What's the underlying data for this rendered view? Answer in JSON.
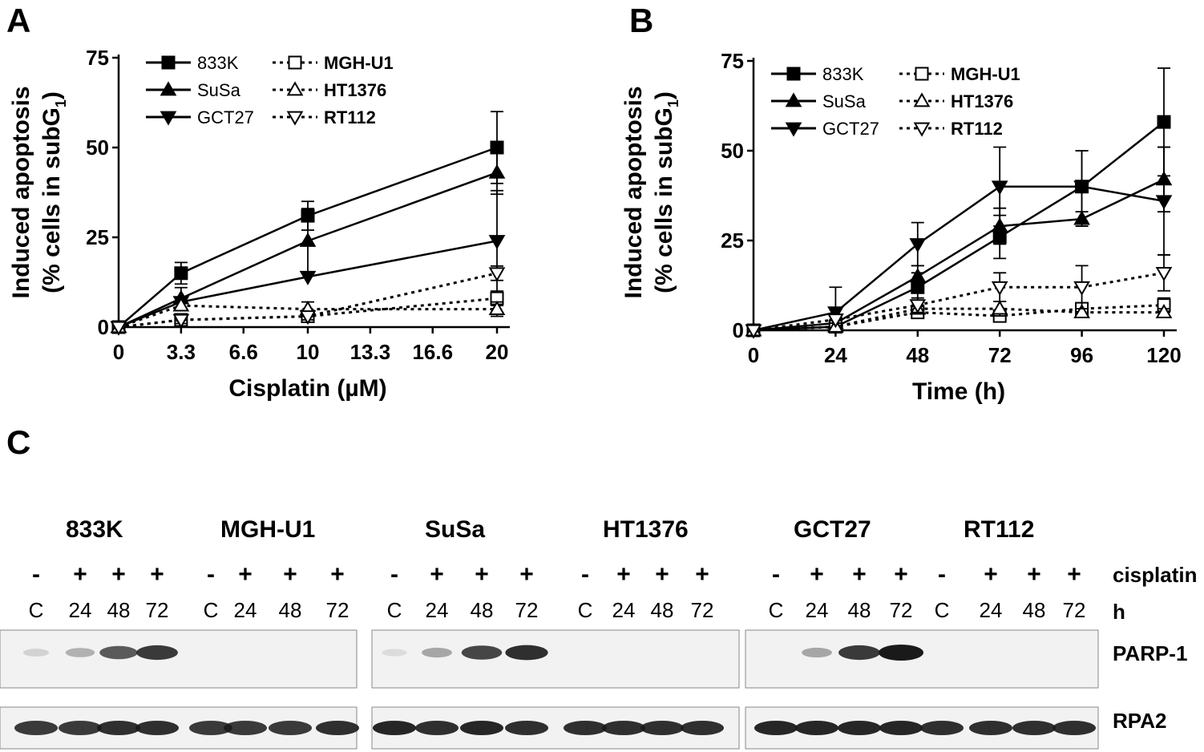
{
  "colors": {
    "ink": "#000000",
    "blot_bg": "#f2f2f2",
    "band": "#1a1a1a"
  },
  "panels": {
    "a": "A",
    "b": "B",
    "c": "C"
  },
  "chart_data": [
    {
      "type": "line",
      "panel": "A",
      "title": "",
      "xlabel": "Cisplatin (µM)",
      "ylabel_line1": "Induced apoptosis",
      "ylabel_line2": "(% cells in subG",
      "ylabel_sub": "1",
      "ylabel_close": ")",
      "xlim": [
        0,
        20
      ],
      "ylim": [
        0,
        75
      ],
      "xticks": [
        0,
        3.3,
        6.6,
        10,
        13.3,
        16.6,
        20
      ],
      "xtick_labels": [
        "0",
        "3.3",
        "6.6",
        "10",
        "13.3",
        "16.6",
        "20"
      ],
      "yticks": [
        0,
        25,
        50,
        75
      ],
      "ytick_labels": [
        "0",
        "25",
        "50",
        "75"
      ],
      "legend_position": "top-left",
      "series": [
        {
          "name": "833K",
          "marker": "square",
          "filled": true,
          "dashed": false,
          "x": [
            0,
            3.3,
            10,
            20
          ],
          "y": [
            0,
            15,
            31,
            50
          ],
          "err": [
            0,
            3,
            4,
            10
          ]
        },
        {
          "name": "SuSa",
          "marker": "triangle-up",
          "filled": true,
          "dashed": false,
          "x": [
            0,
            3.3,
            10,
            20
          ],
          "y": [
            0,
            8,
            24,
            43
          ],
          "err": [
            0,
            3,
            9,
            6
          ]
        },
        {
          "name": "GCT27",
          "marker": "triangle-down",
          "filled": true,
          "dashed": false,
          "x": [
            0,
            3.3,
            10,
            20
          ],
          "y": [
            0,
            7,
            14,
            24
          ],
          "err": [
            0,
            0,
            0,
            14
          ]
        },
        {
          "name": "MGH-U1",
          "marker": "square",
          "filled": false,
          "dashed": true,
          "x": [
            0,
            3.3,
            10,
            20
          ],
          "y": [
            0,
            2,
            3,
            8
          ],
          "err": [
            0,
            1,
            1,
            2
          ]
        },
        {
          "name": "HT1376",
          "marker": "triangle-up",
          "filled": false,
          "dashed": true,
          "x": [
            0,
            3.3,
            10,
            20
          ],
          "y": [
            0,
            6,
            5,
            5
          ],
          "err": [
            0,
            1,
            2,
            2
          ]
        },
        {
          "name": "RT112",
          "marker": "triangle-down",
          "filled": false,
          "dashed": true,
          "x": [
            0,
            3.3,
            10,
            20
          ],
          "y": [
            0,
            2,
            3,
            15
          ],
          "err": [
            0,
            1,
            1,
            2
          ]
        }
      ]
    },
    {
      "type": "line",
      "panel": "B",
      "title": "",
      "xlabel": "Time (h)",
      "ylabel_line1": "Induced apoptosis",
      "ylabel_line2": "(% cells in subG",
      "ylabel_sub": "1",
      "ylabel_close": ")",
      "xlim": [
        0,
        120
      ],
      "ylim": [
        0,
        75
      ],
      "xticks": [
        0,
        24,
        48,
        72,
        96,
        120
      ],
      "xtick_labels": [
        "0",
        "24",
        "48",
        "72",
        "96",
        "120"
      ],
      "yticks": [
        0,
        25,
        50,
        75
      ],
      "ytick_labels": [
        "0",
        "25",
        "50",
        "75"
      ],
      "legend_position": "top-left",
      "series": [
        {
          "name": "833K",
          "marker": "square",
          "filled": true,
          "dashed": false,
          "x": [
            0,
            24,
            48,
            72,
            96,
            120
          ],
          "y": [
            0,
            1,
            12,
            26,
            40,
            58
          ],
          "err": [
            0,
            1,
            4,
            6,
            10,
            15
          ]
        },
        {
          "name": "SuSa",
          "marker": "triangle-up",
          "filled": true,
          "dashed": false,
          "x": [
            0,
            24,
            48,
            72,
            96,
            120
          ],
          "y": [
            0,
            2,
            15,
            29,
            31,
            42
          ],
          "err": [
            0,
            1,
            3,
            5,
            2,
            9
          ]
        },
        {
          "name": "GCT27",
          "marker": "triangle-down",
          "filled": true,
          "dashed": false,
          "x": [
            0,
            24,
            48,
            72,
            96,
            120
          ],
          "y": [
            0,
            5,
            24,
            40,
            40,
            36
          ],
          "err": [
            0,
            7,
            6,
            11,
            10,
            15
          ]
        },
        {
          "name": "MGH-U1",
          "marker": "square",
          "filled": false,
          "dashed": true,
          "x": [
            0,
            24,
            48,
            72,
            96,
            120
          ],
          "y": [
            0,
            1,
            5,
            4,
            6,
            7
          ],
          "err": [
            0,
            1,
            1,
            1,
            1,
            2
          ]
        },
        {
          "name": "HT1376",
          "marker": "triangle-up",
          "filled": false,
          "dashed": true,
          "x": [
            0,
            24,
            48,
            72,
            96,
            120
          ],
          "y": [
            0,
            1,
            6,
            6,
            5,
            5
          ],
          "err": [
            0,
            1,
            1,
            2,
            1,
            1
          ]
        },
        {
          "name": "RT112",
          "marker": "triangle-down",
          "filled": false,
          "dashed": true,
          "x": [
            0,
            24,
            48,
            72,
            96,
            120
          ],
          "y": [
            0,
            3,
            7,
            12,
            12,
            16
          ],
          "err": [
            0,
            1,
            2,
            4,
            6,
            5
          ]
        }
      ]
    }
  ],
  "blot": {
    "cell_lines": [
      "833K",
      "MGH-U1",
      "SuSa",
      "HT1376",
      "GCT27",
      "RT112"
    ],
    "row_cisplatin_label": "cisplatin",
    "row_time_label": "h",
    "treatment": [
      "-",
      "+",
      "+",
      "+"
    ],
    "times": [
      "C",
      "24",
      "48",
      "72"
    ],
    "proteins": [
      "PARP-1",
      "RPA2"
    ],
    "parp1_intensity": [
      [
        0.15,
        0.3,
        0.7,
        0.85
      ],
      [
        0,
        0,
        0,
        0
      ],
      [
        0.1,
        0.35,
        0.8,
        0.9
      ],
      [
        0,
        0,
        0,
        0
      ],
      [
        0,
        0.35,
        0.85,
        1.0
      ],
      [
        0,
        0,
        0,
        0
      ]
    ],
    "rpa2_intensity": [
      [
        0.85,
        0.85,
        0.9,
        0.9
      ],
      [
        0.85,
        0.85,
        0.85,
        0.9
      ],
      [
        0.95,
        0.9,
        0.95,
        0.9
      ],
      [
        0.9,
        0.9,
        0.9,
        0.9
      ],
      [
        0.95,
        0.95,
        0.95,
        0.95
      ],
      [
        0.9,
        0.9,
        0.9,
        0.9
      ]
    ]
  }
}
